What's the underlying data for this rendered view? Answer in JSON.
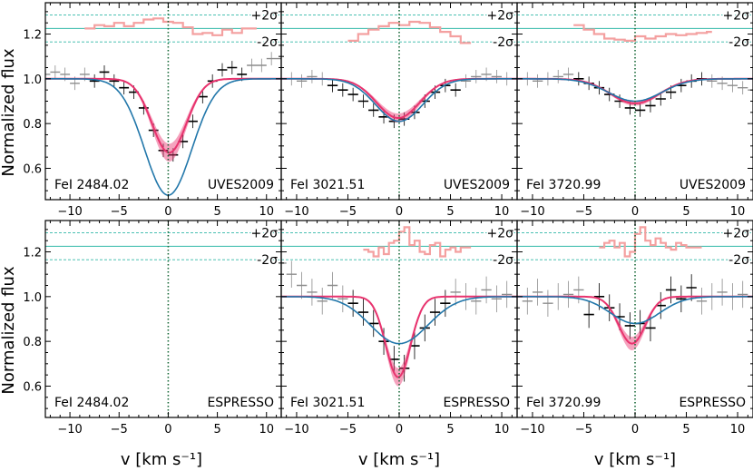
{
  "figure": {
    "ylabel": "Normalized flux",
    "xlabel": "v [km s⁻¹]"
  },
  "colors": {
    "data": "#000000",
    "data_excluded": "#8c8c8c",
    "model_uves_band": "#e8336e",
    "model_blue": "#2277aa",
    "residual": "#f4a0a0",
    "sigma_lines": "#30b8a8",
    "zero_velocity_line": "#1a6a3a"
  },
  "chart_data": [
    {
      "panel": "top-left",
      "type": "line",
      "line_label": "FeI 2484.02",
      "instrument": "UVES2009",
      "xlim": [
        -12.5,
        11.5
      ],
      "ylim": [
        0.46,
        1.34
      ],
      "xticks": [
        -10,
        -5,
        0,
        5,
        10
      ],
      "yticks": [
        0.6,
        0.8,
        1.0,
        1.2
      ],
      "sigma_labels": [
        "+2σ",
        "-2σ"
      ],
      "residual_center": 1.225,
      "fit_window": [
        -8,
        8
      ],
      "spectrum_step": {
        "x": [
          -12.5,
          -11.5,
          -10.5,
          -9.5,
          -8.5,
          -7.5,
          -6.5,
          -5.5,
          -4.5,
          -3.5,
          -2.5,
          -1.5,
          -0.5,
          0.5,
          1.5,
          2.5,
          3.5,
          4.5,
          5.5,
          6.5,
          7.5,
          8.5,
          9.5,
          10.5,
          11.5
        ],
        "y": [
          1.02,
          1.03,
          1.02,
          0.98,
          1.02,
          0.99,
          1.03,
          0.99,
          0.96,
          0.94,
          0.87,
          0.77,
          0.68,
          0.66,
          0.72,
          0.81,
          0.92,
          0.99,
          1.04,
          1.05,
          1.02,
          1.06,
          1.06,
          1.09,
          1.09
        ]
      },
      "models": [
        {
          "color": "pink",
          "kind": "band",
          "center": 0.1,
          "depth": 0.33,
          "sigma": 1.75,
          "spread": 0.02
        },
        {
          "color": "blue",
          "kind": "line",
          "center": 0.0,
          "depth": 0.52,
          "sigma": 2.4
        }
      ],
      "residual_step": {
        "x": [
          -8.5,
          -7.5,
          -6.5,
          -5.5,
          -4.5,
          -3.5,
          -2.5,
          -1.5,
          -0.5,
          0.5,
          1.5,
          2.5,
          3.5,
          4.5,
          5.5,
          6.5,
          7.5,
          8.5
        ],
        "y": [
          1.225,
          1.24,
          1.235,
          1.25,
          1.235,
          1.25,
          1.265,
          1.27,
          1.255,
          1.25,
          1.23,
          1.2,
          1.205,
          1.195,
          1.22,
          1.205,
          1.225,
          1.225
        ]
      }
    },
    {
      "panel": "top-middle",
      "type": "line",
      "line_label": "FeI 3021.51",
      "instrument": "UVES2009",
      "xlim": [
        -11.5,
        11.5
      ],
      "ylim": [
        0.46,
        1.34
      ],
      "xticks": [
        -10,
        -5,
        0,
        5,
        10
      ],
      "yticks": [
        0.6,
        0.8,
        1.0,
        1.2
      ],
      "sigma_labels": [
        "+2σ",
        "-2σ"
      ],
      "residual_center": 1.225,
      "fit_window": [
        -7,
        6
      ],
      "spectrum_step": {
        "x": [
          -11.5,
          -10.5,
          -9.5,
          -8.5,
          -7.5,
          -6.5,
          -5.5,
          -4.5,
          -3.5,
          -2.5,
          -1.5,
          -0.5,
          0.5,
          1.5,
          2.5,
          3.5,
          4.5,
          5.5,
          6.5,
          7.5,
          8.5,
          9.5,
          10.5,
          11.5
        ],
        "y": [
          1.0,
          1.0,
          0.99,
          1.01,
          1.0,
          0.97,
          0.95,
          0.93,
          0.9,
          0.86,
          0.83,
          0.81,
          0.82,
          0.85,
          0.9,
          0.94,
          0.97,
          0.95,
          0.99,
          1.01,
          1.02,
          1.01,
          1.0,
          1.0
        ]
      },
      "models": [
        {
          "color": "pink",
          "kind": "band",
          "center": -0.1,
          "depth": 0.175,
          "sigma": 2.1,
          "spread": 0.01
        },
        {
          "color": "blue",
          "kind": "line",
          "center": 0.0,
          "depth": 0.19,
          "sigma": 2.3
        }
      ],
      "residual_step": {
        "x": [
          -5,
          -4,
          -3,
          -2,
          -1,
          0,
          1,
          2,
          3,
          4,
          5,
          6,
          6.5
        ],
        "y": [
          1.17,
          1.2,
          1.22,
          1.235,
          1.25,
          1.24,
          1.255,
          1.25,
          1.23,
          1.21,
          1.19,
          1.16,
          1.16
        ]
      }
    },
    {
      "panel": "top-right",
      "type": "line",
      "line_label": "FeI 3720.99",
      "instrument": "UVES2009",
      "xlim": [
        -11.5,
        11.5
      ],
      "ylim": [
        0.46,
        1.34
      ],
      "xticks": [
        -10,
        -5,
        0,
        5,
        10
      ],
      "yticks": [
        0.6,
        0.8,
        1.0,
        1.2
      ],
      "sigma_labels": [
        "+2σ",
        "-2σ"
      ],
      "residual_center": 1.225,
      "fit_window": [
        -6,
        7
      ],
      "spectrum_step": {
        "x": [
          -11.5,
          -10.5,
          -9.5,
          -8.5,
          -7.5,
          -6.5,
          -5.5,
          -4.5,
          -3.5,
          -2.5,
          -1.5,
          -0.5,
          0.5,
          1.5,
          2.5,
          3.5,
          4.5,
          5.5,
          6.5,
          7.5,
          8.5,
          9.5,
          10.5,
          11.5
        ],
        "y": [
          1.0,
          1.0,
          0.99,
          1.0,
          1.01,
          1.02,
          1.0,
          0.98,
          0.96,
          0.93,
          0.9,
          0.87,
          0.86,
          0.88,
          0.91,
          0.94,
          0.97,
          0.99,
          1.0,
          0.99,
          0.98,
          0.97,
          0.96,
          0.95
        ]
      },
      "models": [
        {
          "color": "pink",
          "kind": "band",
          "center": 0.0,
          "depth": 0.11,
          "sigma": 2.4,
          "spread": 0.005
        },
        {
          "color": "blue",
          "kind": "line",
          "center": 0.0,
          "depth": 0.1,
          "sigma": 2.6
        }
      ],
      "residual_step": {
        "x": [
          -6,
          -5,
          -4,
          -3,
          -2,
          -1,
          0,
          1,
          2,
          3,
          4,
          5,
          6,
          7
        ],
        "y": [
          1.24,
          1.22,
          1.2,
          1.18,
          1.175,
          1.17,
          1.19,
          1.18,
          1.19,
          1.2,
          1.195,
          1.2,
          1.205,
          1.21
        ]
      }
    },
    {
      "panel": "bottom-left",
      "type": "line",
      "line_label": "FeI 2484.02",
      "instrument": "ESPRESSO",
      "xlim": [
        -12.5,
        11.5
      ],
      "ylim": [
        0.46,
        1.34
      ],
      "xticks": [
        -10,
        -5,
        0,
        5,
        10
      ],
      "yticks": [
        0.6,
        0.8,
        1.0,
        1.2
      ],
      "sigma_labels": [
        "+2σ",
        "-2σ"
      ],
      "residual_center": 1.225,
      "fit_window": [
        0,
        0
      ],
      "spectrum_step": {
        "x": [],
        "y": []
      },
      "models": [],
      "residual_step": {
        "x": [],
        "y": []
      }
    },
    {
      "panel": "bottom-middle",
      "type": "line",
      "line_label": "FeI 3021.51",
      "instrument": "ESPRESSO",
      "xlim": [
        -11.5,
        11.5
      ],
      "ylim": [
        0.46,
        1.34
      ],
      "xticks": [
        -10,
        -5,
        0,
        5,
        10
      ],
      "yticks": [
        0.6,
        0.8,
        1.0,
        1.2
      ],
      "sigma_labels": [
        "+2σ",
        "-2σ"
      ],
      "residual_center": 1.225,
      "fit_window": [
        -5,
        5
      ],
      "spectrum_step": {
        "x": [
          -11.5,
          -10.5,
          -9.5,
          -8.5,
          -7.5,
          -6.5,
          -5.5,
          -4.5,
          -3.5,
          -2.5,
          -1.5,
          -0.5,
          0.5,
          1.5,
          2.5,
          3.5,
          4.5,
          5.5,
          6.5,
          7.5,
          8.5,
          9.5,
          10.5,
          11.5
        ],
        "y": [
          1.15,
          1.1,
          1.05,
          1.02,
          0.98,
          1.05,
          0.99,
          0.97,
          0.93,
          0.88,
          0.8,
          0.72,
          0.68,
          0.78,
          0.86,
          0.93,
          0.97,
          1.02,
          1.0,
          0.98,
          1.03,
          0.99,
          1.01,
          1.0
        ]
      },
      "models": [
        {
          "color": "pink",
          "kind": "band",
          "center": -0.1,
          "depth": 0.36,
          "sigma": 1.2,
          "spread": 0.02
        },
        {
          "color": "blue",
          "kind": "line",
          "center": 0.0,
          "depth": 0.21,
          "sigma": 2.8
        }
      ],
      "residual_step": {
        "x": [
          -3.5,
          -3,
          -2.5,
          -2,
          -1.5,
          -1,
          -0.5,
          0,
          0.5,
          1,
          1.5,
          2,
          2.5,
          3,
          3.5,
          4,
          4.5,
          5,
          5.5,
          6,
          6.5
        ],
        "y": [
          1.21,
          1.2,
          1.18,
          1.22,
          1.19,
          1.24,
          1.25,
          1.29,
          1.31,
          1.23,
          1.25,
          1.2,
          1.19,
          1.23,
          1.24,
          1.18,
          1.21,
          1.22,
          1.2,
          1.22,
          1.22
        ]
      }
    },
    {
      "panel": "bottom-right",
      "type": "line",
      "line_label": "FeI 3720.99",
      "instrument": "ESPRESSO",
      "xlim": [
        -11.5,
        11.5
      ],
      "ylim": [
        0.46,
        1.34
      ],
      "xticks": [
        -10,
        -5,
        0,
        5,
        10
      ],
      "yticks": [
        0.6,
        0.8,
        1.0,
        1.2
      ],
      "sigma_labels": [
        "+2σ",
        "-2σ"
      ],
      "residual_center": 1.225,
      "fit_window": [
        -5,
        6
      ],
      "spectrum_step": {
        "x": [
          -11.5,
          -10.5,
          -9.5,
          -8.5,
          -7.5,
          -6.5,
          -5.5,
          -4.5,
          -3.5,
          -2.5,
          -1.5,
          -0.5,
          0.5,
          1.5,
          2.5,
          3.5,
          4.5,
          5.5,
          6.5,
          7.5,
          8.5,
          9.5,
          10.5,
          11.5
        ],
        "y": [
          1.0,
          0.98,
          1.02,
          0.97,
          1.0,
          1.01,
          1.03,
          0.92,
          1.0,
          0.95,
          0.91,
          0.87,
          0.88,
          0.86,
          0.96,
          1.03,
          0.99,
          1.04,
          0.98,
          1.0,
          1.02,
          1.0,
          1.01,
          1.0
        ]
      },
      "models": [
        {
          "color": "pink",
          "kind": "band",
          "center": -0.3,
          "depth": 0.21,
          "sigma": 1.3,
          "spread": 0.015
        },
        {
          "color": "blue",
          "kind": "line",
          "center": 0.0,
          "depth": 0.12,
          "sigma": 2.4
        }
      ],
      "residual_step": {
        "x": [
          -3.5,
          -3,
          -2.5,
          -2,
          -1.5,
          -1,
          -0.5,
          0,
          0.5,
          1,
          1.5,
          2,
          2.5,
          3,
          3.5,
          4,
          4.5,
          5,
          5.5,
          6
        ],
        "y": [
          1.22,
          1.24,
          1.25,
          1.22,
          1.24,
          1.18,
          1.2,
          1.28,
          1.31,
          1.25,
          1.23,
          1.26,
          1.24,
          1.22,
          1.21,
          1.24,
          1.23,
          1.22,
          1.22,
          1.22
        ]
      }
    }
  ]
}
